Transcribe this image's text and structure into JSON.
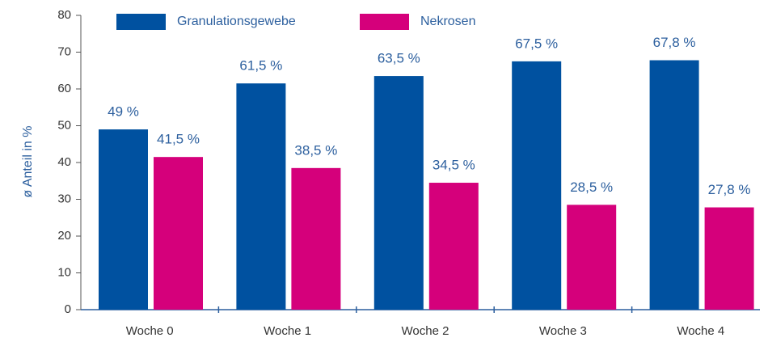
{
  "chart_data": {
    "type": "bar",
    "y_axis_label": "ø Anteil in %",
    "categories": [
      "Woche 0",
      "Woche 1",
      "Woche 2",
      "Woche 3",
      "Woche 4"
    ],
    "series": [
      {
        "name": "Granulationsgewebe",
        "color": "#0051a0",
        "values": [
          49,
          61.5,
          63.5,
          67.5,
          67.8
        ],
        "value_labels": [
          "49 %",
          "61,5 %",
          "63,5 %",
          "67,5 %",
          "67,8 %"
        ]
      },
      {
        "name": "Nekrosen",
        "color": "#d5007b",
        "values": [
          41.5,
          38.5,
          34.5,
          28.5,
          27.8
        ],
        "value_labels": [
          "41,5 %",
          "38,5 %",
          "34,5 %",
          "28,5 %",
          "27,8 %"
        ]
      }
    ],
    "ylim": [
      0,
      80
    ],
    "yticks": [
      0,
      10,
      20,
      30,
      40,
      50,
      60,
      70,
      80
    ]
  }
}
